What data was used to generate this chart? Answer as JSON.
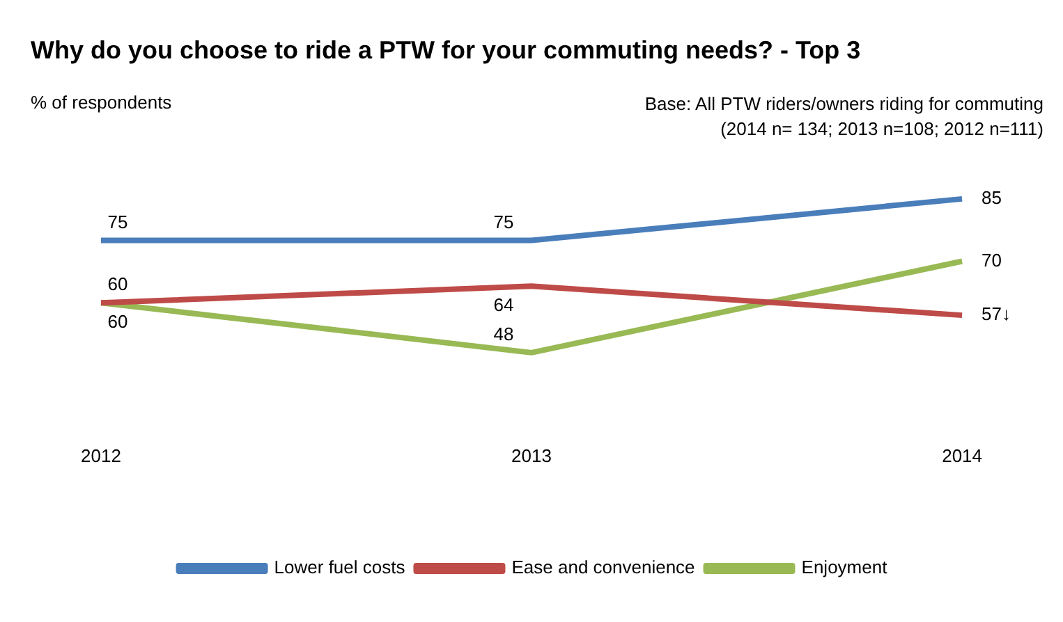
{
  "chart_data": {
    "type": "line",
    "title": "Why do you choose to ride a PTW for your commuting needs? - Top 3",
    "annotations": [
      "% of respondents",
      "Base: All PTW riders/owners riding for commuting",
      "(2014 n= 134; 2013 n=108; 2012 n=111)"
    ],
    "categories": [
      "2012",
      "2013",
      "2014"
    ],
    "series": [
      {
        "name": "Lower fuel costs",
        "color": "#4a7ebb",
        "values": [
          75,
          75,
          85
        ],
        "value_labels": [
          "75",
          "75",
          "85"
        ]
      },
      {
        "name": "Ease and convenience",
        "color": "#be4b48",
        "values": [
          60,
          64,
          57
        ],
        "value_labels": [
          "60",
          "64",
          "57↓"
        ]
      },
      {
        "name": "Enjoyment",
        "color": "#98b954",
        "values": [
          60,
          48,
          70
        ],
        "value_labels": [
          "60",
          "48",
          "70"
        ]
      }
    ],
    "legend": "bottom",
    "grid": false,
    "marker": "none",
    "line_style": "solid"
  }
}
